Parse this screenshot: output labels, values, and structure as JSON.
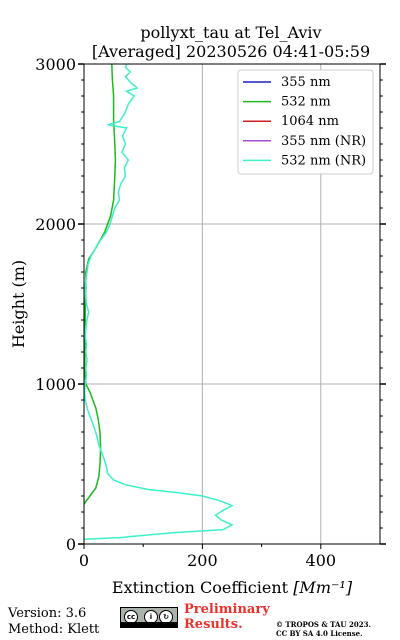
{
  "chart_data": {
    "type": "line",
    "title": "pollyxt_tau at Tel_Aviv",
    "subtitle": "[Averaged] 20230526 04:41-05:59",
    "xlabel": "Extinction Coefficient",
    "xlabel_unit": "[Mm⁻¹]",
    "ylabel": "Height (m)",
    "xlim": [
      0,
      500
    ],
    "ylim": [
      0,
      3000
    ],
    "xticks": [
      0,
      200,
      400
    ],
    "yticks": [
      0,
      1000,
      2000,
      3000
    ],
    "grid": true,
    "legend_position": "top-right",
    "series": [
      {
        "name": "355 nm",
        "color": "#1f1fcf",
        "x": [],
        "y": []
      },
      {
        "name": "532 nm",
        "color": "#1fb81f",
        "x": [
          0,
          10,
          20,
          25,
          27,
          28,
          27,
          24,
          20,
          10,
          3,
          1,
          2,
          2,
          3,
          3,
          8,
          20,
          35,
          45,
          50,
          52,
          53,
          52,
          50,
          50,
          48,
          47
        ],
        "y": [
          250,
          300,
          350,
          420,
          500,
          600,
          700,
          780,
          850,
          950,
          1000,
          1100,
          1300,
          1500,
          1600,
          1700,
          1780,
          1850,
          1950,
          2050,
          2150,
          2300,
          2400,
          2500,
          2650,
          2800,
          2900,
          3000
        ]
      },
      {
        "name": "1064 nm",
        "color": "#cf1f1f",
        "x": [],
        "y": []
      },
      {
        "name": "355 nm (NR)",
        "color": "#a64fd8",
        "x": [],
        "y": []
      },
      {
        "name": "532 nm (NR)",
        "color": "#3ef0c8",
        "x": [],
        "y": [],
        "pts": [
          [
            0,
            30
          ],
          [
            60,
            40
          ],
          [
            150,
            70
          ],
          [
            235,
            90
          ],
          [
            250,
            120
          ],
          [
            232,
            150
          ],
          [
            222,
            180
          ],
          [
            235,
            210
          ],
          [
            250,
            240
          ],
          [
            230,
            270
          ],
          [
            200,
            300
          ],
          [
            160,
            320
          ],
          [
            110,
            340
          ],
          [
            70,
            370
          ],
          [
            50,
            400
          ],
          [
            40,
            440
          ],
          [
            38,
            480
          ],
          [
            35,
            520
          ],
          [
            30,
            570
          ],
          [
            25,
            620
          ],
          [
            22,
            670
          ],
          [
            18,
            720
          ],
          [
            12,
            780
          ],
          [
            6,
            840
          ],
          [
            2,
            900
          ],
          [
            1,
            960
          ],
          [
            2,
            1000
          ],
          [
            4,
            1050
          ],
          [
            3,
            1100
          ],
          [
            5,
            1150
          ],
          [
            3,
            1200
          ],
          [
            4,
            1250
          ],
          [
            2,
            1300
          ],
          [
            3,
            1350
          ],
          [
            5,
            1400
          ],
          [
            8,
            1450
          ],
          [
            4,
            1500
          ],
          [
            3,
            1550
          ],
          [
            2,
            1600
          ],
          [
            3,
            1650
          ],
          [
            5,
            1700
          ],
          [
            7,
            1750
          ],
          [
            12,
            1800
          ],
          [
            20,
            1850
          ],
          [
            28,
            1900
          ],
          [
            38,
            1950
          ],
          [
            44,
            2000
          ],
          [
            48,
            2050
          ],
          [
            52,
            2100
          ],
          [
            60,
            2150
          ],
          [
            58,
            2200
          ],
          [
            62,
            2250
          ],
          [
            70,
            2300
          ],
          [
            68,
            2350
          ],
          [
            75,
            2400
          ],
          [
            64,
            2450
          ],
          [
            70,
            2500
          ],
          [
            65,
            2550
          ],
          [
            72,
            2600
          ],
          [
            40,
            2620
          ],
          [
            60,
            2640
          ],
          [
            70,
            2700
          ],
          [
            75,
            2750
          ],
          [
            85,
            2800
          ],
          [
            72,
            2830
          ],
          [
            90,
            2850
          ],
          [
            80,
            2880
          ],
          [
            70,
            2920
          ],
          [
            78,
            2950
          ],
          [
            70,
            2980
          ],
          [
            72,
            3000
          ]
        ]
      }
    ]
  },
  "footer": {
    "version": "Version: 3.6",
    "method": "Method: Klett",
    "preliminary_line1": "Preliminary",
    "preliminary_line2": "Results.",
    "copyright_line1": "© TROPOS & TAU 2023.",
    "copyright_line2": "CC BY SA 4.0 License.",
    "badge_cc": "cc",
    "badge_by": "BY",
    "badge_sa": "SA"
  }
}
